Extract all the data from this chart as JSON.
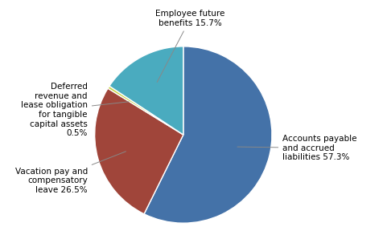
{
  "slices": [
    {
      "label": "Accounts payable\nand accrued\nliabilities 57.3%",
      "value": 57.3,
      "color": "#4472A8"
    },
    {
      "label": "Vacation pay and\ncompensatory\nleave 26.5%",
      "value": 26.5,
      "color": "#A0453A"
    },
    {
      "label": "Deferred\nrevenue and\nlease obligation\nfor tangible\ncapital assets\n0.5%",
      "value": 0.5,
      "color": "#C8D44A"
    },
    {
      "label": "Employee future\nbenefits 15.7%",
      "value": 15.7,
      "color": "#4AABBF"
    }
  ],
  "startangle": 90,
  "background_color": "#ffffff",
  "label_fontsize": 7.5
}
